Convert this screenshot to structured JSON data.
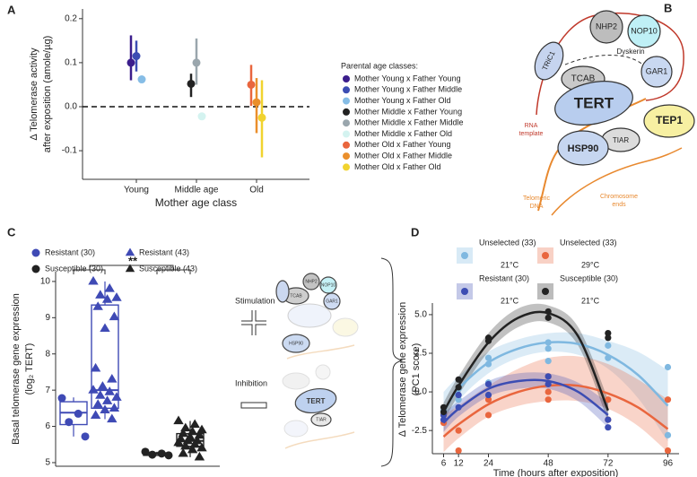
{
  "panel_labels": [
    "A",
    "B",
    "C",
    "D"
  ],
  "diagram": {
    "proteins": [
      "TRiC1",
      "NHP2",
      "NOP10",
      "TCAB",
      "GAR1",
      "TERT",
      "TEP1",
      "TIAR",
      "HSP90"
    ],
    "dyskerin": "Dyskerin",
    "rna_template": [
      "RNA",
      "template"
    ],
    "telomeric_dna": [
      "Telomeric",
      "DNA"
    ],
    "chromosome_ends": [
      "Chromosome",
      "ends"
    ]
  },
  "illustration": {
    "stimulation": "Stimulation",
    "inhibition": "Inhibition",
    "top_labels": [
      "TCAB",
      "NHP2",
      "NOP10",
      "GAR1",
      "HSP90"
    ],
    "bottom_labels": [
      "TERT",
      "TIAR"
    ]
  },
  "chart_data": [
    {
      "type": "dot_errorbar",
      "y_label": [
        "Δ Telomerase activity",
        "after exposition (amole/µg)"
      ],
      "x_label": "Mother age class",
      "categories": [
        "Young",
        "Middle age",
        "Old"
      ],
      "ylim": [
        -0.165,
        0.222
      ],
      "yticks": [
        -0.1,
        {
          "value": 0,
          "label": "0.0"
        },
        0.1,
        0.2
      ],
      "legend_title": "Parental age classes:",
      "series": [
        {
          "name": "Mother Young x Father Young",
          "color": "#3b1d8c",
          "values": [
            0.1,
            null,
            null
          ],
          "lower": [
            0.06,
            null,
            null
          ],
          "upper": [
            0.162,
            null,
            null
          ]
        },
        {
          "name": "Mother Young x Father Middle",
          "color": "#3c4db3",
          "values": [
            0.115,
            null,
            null
          ],
          "lower": [
            0.08,
            null,
            null
          ],
          "upper": [
            0.15,
            null,
            null
          ]
        },
        {
          "name": "Mother Young x Father Old",
          "color": "#86bde6",
          "values": [
            0.062,
            null,
            null
          ],
          "lower": [
            null,
            null,
            null
          ],
          "upper": [
            null,
            null,
            null
          ]
        },
        {
          "name": "Mother Middle x Father Young",
          "color": "#222222",
          "values": [
            null,
            0.052,
            null
          ],
          "lower": [
            null,
            0.022,
            null
          ],
          "upper": [
            null,
            0.075,
            null
          ]
        },
        {
          "name": "Mother Middle x Father Middle",
          "color": "#9aa6ad",
          "values": [
            null,
            0.1,
            null
          ],
          "lower": [
            null,
            0.05,
            null
          ],
          "upper": [
            null,
            0.155,
            null
          ]
        },
        {
          "name": "Mother Middle x Father Old",
          "color": "#d4f3f0",
          "values": [
            null,
            -0.022,
            null
          ],
          "lower": [
            null,
            null,
            null
          ],
          "upper": [
            null,
            null,
            null
          ]
        },
        {
          "name": "Mother Old x Father Young",
          "color": "#e9663e",
          "values": [
            null,
            null,
            0.05
          ],
          "lower": [
            null,
            null,
            0.002
          ],
          "upper": [
            null,
            null,
            0.095
          ]
        },
        {
          "name": "Mother Old x Father Middle",
          "color": "#ea8f2c",
          "values": [
            null,
            null,
            0.01
          ],
          "lower": [
            null,
            null,
            -0.06
          ],
          "upper": [
            null,
            null,
            0.065
          ]
        },
        {
          "name": "Mother Old x Father Old",
          "color": "#f1d32f",
          "values": [
            null,
            null,
            -0.025
          ],
          "lower": [
            null,
            null,
            -0.115
          ],
          "upper": [
            null,
            null,
            0.06
          ]
        }
      ]
    },
    {
      "type": "box_points",
      "y_label": [
        "Basal telomerase gene expression",
        "(log₂ TERT)"
      ],
      "ylim": [
        4.9,
        10.27
      ],
      "yticks": [
        5,
        6,
        7,
        8,
        9,
        10
      ],
      "significance": "**",
      "series": [
        {
          "name": "Resistant (30)",
          "color": "#3f4ab5",
          "marker": "circle",
          "box": {
            "q1": 6.05,
            "median": 6.38,
            "q3": 6.68,
            "whisker_low": 5.72,
            "whisker_high": 6.8
          },
          "points": [
            6.78,
            6.35,
            6.12,
            5.72
          ]
        },
        {
          "name": "Resistant (43)",
          "color": "#3f4ab5",
          "marker": "triangle",
          "box": {
            "q1": 6.5,
            "median": 7.0,
            "q3": 9.35,
            "whisker_low": 6.2,
            "whisker_high": 10.0
          },
          "points": [
            10.0,
            9.8,
            9.62,
            9.55,
            9.5,
            9.3,
            9.02,
            8.7,
            7.6,
            7.3,
            7.1,
            7.0,
            6.95,
            6.85,
            6.8,
            6.7,
            6.6,
            6.5,
            6.45,
            6.3,
            6.2
          ]
        },
        {
          "name": "Susceptible (30)",
          "color": "#222222",
          "marker": "circle",
          "box": {
            "q1": 5.2,
            "median": 5.25,
            "q3": 5.27,
            "whisker_low": 5.2,
            "whisker_high": 5.3
          },
          "points": [
            5.3,
            5.25,
            5.22,
            5.2
          ]
        },
        {
          "name": "Susceptible (43)",
          "color": "#222222",
          "marker": "triangle",
          "box": {
            "q1": 5.45,
            "median": 5.6,
            "q3": 5.8,
            "whisker_low": 5.15,
            "whisker_high": 6.15
          },
          "points": [
            6.15,
            6.05,
            5.95,
            5.9,
            5.85,
            5.8,
            5.75,
            5.7,
            5.65,
            5.6,
            5.6,
            5.55,
            5.5,
            5.45,
            5.4,
            5.35,
            5.25,
            5.15
          ]
        }
      ]
    },
    {
      "type": "fit_scatter",
      "y_label": [
        "Δ Telomerase gene expression",
        "(PC1 score)"
      ],
      "x_label": "Time (hours after exposition)",
      "xlim": [
        1.5,
        100.5
      ],
      "xticks": [
        6,
        12,
        24,
        48,
        72,
        96
      ],
      "ylim": [
        -4.0,
        5.75
      ],
      "yticks": [
        -2.5,
        {
          "value": 0,
          "label": "0.0"
        },
        2.5,
        {
          "value": 5,
          "label": "5.0"
        }
      ],
      "series": [
        {
          "name": "Unselected (33)",
          "condition": "21°C",
          "color": "#7fb8e0",
          "x": [
            6,
            6,
            12,
            12,
            24,
            24,
            24,
            48,
            48,
            48,
            72,
            72,
            96,
            96
          ],
          "values": [
            -1.5,
            -1.2,
            0.2,
            -0.5,
            1.8,
            2.2,
            0.6,
            3.2,
            2.8,
            2.0,
            3.0,
            2.2,
            1.6,
            -2.8
          ],
          "fit": {
            "x": [
              6,
              12,
              24,
              36,
              48,
              60,
              72,
              84,
              96
            ],
            "values": [
              -1.3,
              0.2,
              1.9,
              2.8,
              3.2,
              3.1,
              2.4,
              1.1,
              -0.9
            ],
            "lower": [
              -2.6,
              -0.6,
              1.2,
              2.2,
              2.6,
              2.4,
              1.5,
              -0.4,
              -3.2
            ],
            "upper": [
              0.0,
              1.0,
              2.6,
              3.4,
              3.8,
              3.8,
              3.3,
              2.6,
              1.4
            ]
          }
        },
        {
          "name": "Unselected (33)",
          "condition": "29°C",
          "color": "#e9663e",
          "x": [
            6,
            6,
            12,
            12,
            24,
            24,
            48,
            48,
            48,
            72,
            72,
            96,
            96
          ],
          "values": [
            -1.5,
            -2.0,
            -2.5,
            -3.8,
            -1.5,
            -0.5,
            0.0,
            -0.5,
            1.0,
            -0.5,
            -1.8,
            -0.5,
            -3.8
          ],
          "fit": {
            "x": [
              6,
              12,
              24,
              36,
              48,
              60,
              72,
              84,
              96
            ],
            "values": [
              -2.9,
              -2.1,
              -0.8,
              0.0,
              0.4,
              0.4,
              -0.1,
              -1.0,
              -2.4
            ],
            "lower": [
              -3.9,
              -3.0,
              -1.6,
              -0.9,
              -0.6,
              -0.6,
              -1.1,
              -2.2,
              -3.9
            ],
            "upper": [
              -1.5,
              -0.9,
              0.4,
              1.5,
              2.2,
              2.3,
              1.8,
              0.8,
              -0.5
            ]
          }
        },
        {
          "name": "Resistant (30)",
          "condition": "21°C",
          "color": "#3c4db3",
          "x": [
            6,
            6,
            12,
            12,
            24,
            24,
            48,
            48,
            72,
            72
          ],
          "values": [
            -1.8,
            -1.5,
            -1.0,
            -0.2,
            0.5,
            -0.2,
            0.5,
            1.0,
            -1.8,
            -2.3
          ],
          "fit": {
            "x": [
              6,
              12,
              24,
              36,
              48,
              60,
              72
            ],
            "values": [
              -2.0,
              -1.1,
              0.2,
              0.7,
              0.7,
              0.0,
              -1.5
            ],
            "lower": [
              -2.6,
              -1.6,
              -0.3,
              0.2,
              0.2,
              -0.6,
              -2.3
            ],
            "upper": [
              -1.4,
              -0.6,
              0.7,
              1.2,
              1.2,
              0.6,
              -0.7
            ]
          }
        },
        {
          "name": "Susceptible (30)",
          "condition": "21°C",
          "color": "#222222",
          "x": [
            6,
            6,
            12,
            12,
            24,
            24,
            48,
            48,
            72,
            72
          ],
          "values": [
            -1.0,
            -1.3,
            0.8,
            0.3,
            3.5,
            3.3,
            5.2,
            4.8,
            3.8,
            3.5
          ],
          "fit": {
            "x": [
              6,
              12,
              24,
              36,
              48,
              60,
              72
            ],
            "values": [
              -1.3,
              0.4,
              3.2,
              4.8,
              5.1,
              3.6,
              -1.2
            ],
            "lower": [
              -1.9,
              -0.2,
              2.6,
              4.2,
              4.5,
              3.0,
              -1.9
            ],
            "upper": [
              -0.7,
              1.0,
              3.8,
              5.4,
              5.6,
              4.2,
              -0.5
            ]
          }
        }
      ]
    }
  ]
}
